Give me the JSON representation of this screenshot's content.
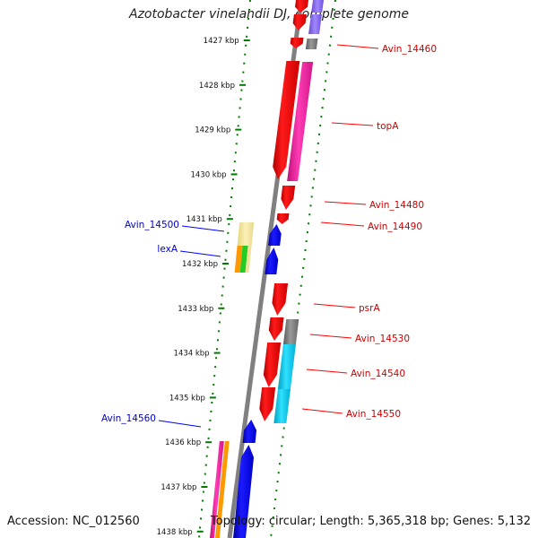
{
  "title": "Azotobacter vinelandii DJ, complete genome",
  "footer": {
    "accession": "Accession: NC_012560",
    "summary": "Topology: circular; Length: 5,365,318 bp; Genes: 5,132"
  },
  "ticks": [
    "1427 kbp",
    "1428 kbp",
    "1429 kbp",
    "1430 kbp",
    "1431 kbp",
    "1432 kbp",
    "1433 kbp",
    "1434 kbp",
    "1435 kbp",
    "1436 kbp",
    "1437 kbp",
    "1438 kbp"
  ],
  "colors": {
    "red": "#ff0000",
    "blue": "#0000ff",
    "gray": "#808080",
    "pink": "#ff2aa8",
    "violet": "#8a6cf0",
    "cyan": "#10c8e8",
    "yellow": "#f0e29a",
    "orange": "#ff9900",
    "green": "#22cc22",
    "dot_green": "#007a00"
  },
  "forward_labels": [
    {
      "name": "Avin_14460",
      "target": "Avin_14460"
    },
    {
      "name": "topA",
      "target": "topA"
    },
    {
      "name": "Avin_14480",
      "target": "Avin_14480"
    },
    {
      "name": "Avin_14490",
      "target": "Avin_14490"
    },
    {
      "name": "psrA",
      "target": "psrA"
    },
    {
      "name": "Avin_14530",
      "target": "Avin_14530"
    },
    {
      "name": "Avin_14540",
      "target": "Avin_14540"
    },
    {
      "name": "Avin_14550",
      "target": "Avin_14550"
    }
  ],
  "reverse_labels": [
    {
      "name": "Avin_14500"
    },
    {
      "name": "lexA"
    },
    {
      "name": "Avin_14560"
    }
  ]
}
